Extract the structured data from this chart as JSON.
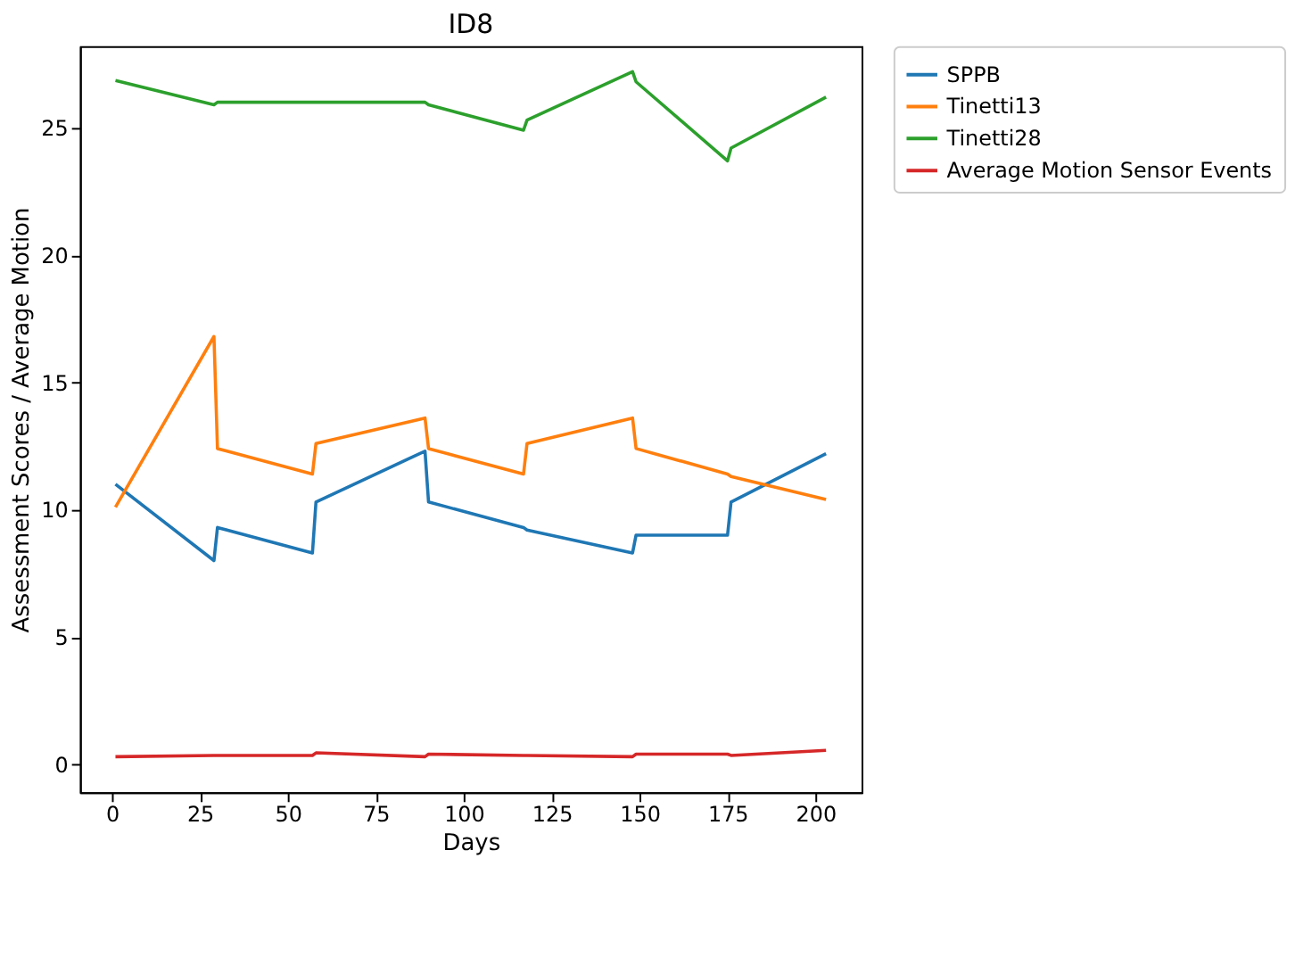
{
  "chart_data": {
    "type": "line",
    "title": "ID8",
    "xlabel": "Days",
    "ylabel": "Assessment Scores / Average Motion",
    "x": [
      1,
      29,
      30,
      57,
      58,
      89,
      90,
      117,
      118,
      148,
      149,
      175,
      176,
      203
    ],
    "series": [
      {
        "name": "SPPB",
        "color": "#1f77b4",
        "values": [
          11.0,
          8.0,
          9.3,
          8.3,
          10.3,
          12.3,
          10.3,
          9.3,
          9.2,
          8.3,
          9.0,
          9.0,
          10.3,
          12.2
        ]
      },
      {
        "name": "Tinetti13",
        "color": "#ff7f0e",
        "values": [
          10.1,
          16.8,
          12.4,
          11.4,
          12.6,
          13.6,
          12.4,
          11.4,
          12.6,
          13.6,
          12.4,
          11.4,
          11.3,
          10.4
        ]
      },
      {
        "name": "Tinetti28",
        "color": "#2ca02c",
        "values": [
          26.85,
          25.9,
          26.0,
          26.0,
          26.0,
          26.0,
          25.9,
          24.9,
          25.3,
          27.2,
          26.8,
          23.7,
          24.2,
          26.2
        ]
      },
      {
        "name": "Average Motion Sensor Events",
        "color": "#d62728",
        "values": [
          0.3,
          0.35,
          0.35,
          0.35,
          0.45,
          0.3,
          0.4,
          0.35,
          0.35,
          0.3,
          0.4,
          0.4,
          0.35,
          0.55
        ]
      }
    ],
    "xlim": [
      -9.1,
      213.1
    ],
    "xticks": [
      0,
      25,
      50,
      75,
      100,
      125,
      150,
      175,
      200
    ],
    "ylim": [
      -1.1,
      28.2
    ],
    "yticks": [
      0,
      5,
      10,
      15,
      20,
      25
    ],
    "grid": false,
    "legend": "top right",
    "marker": "none",
    "line_style": "solid"
  }
}
